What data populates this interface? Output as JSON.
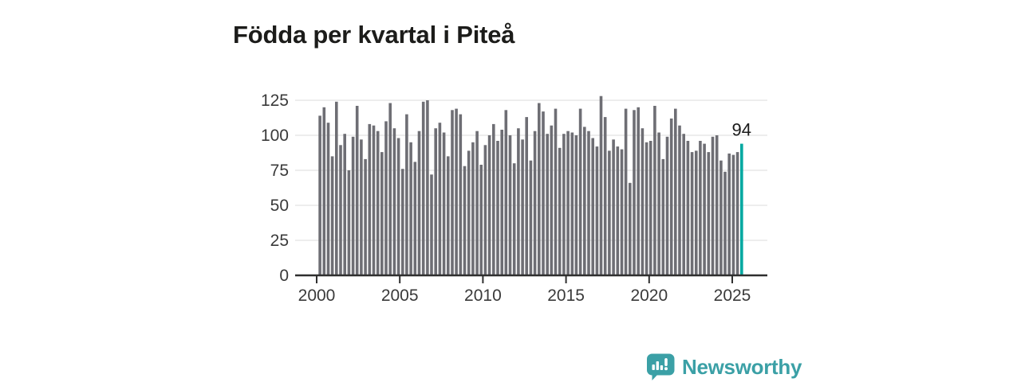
{
  "title": "Födda per kvartal i Piteå",
  "branding": {
    "logo_text": "Newsworthy",
    "logo_color": "#3ba0a6"
  },
  "colors": {
    "bar": "#6e6e74",
    "highlight": "#00a8a1",
    "grid": "#e7e7e7",
    "axis": "#2f2f2f",
    "text": "#3a3a3a",
    "background": "#ffffff"
  },
  "chart_data": {
    "type": "bar",
    "title": "Födda per kvartal i Piteå",
    "xlabel": "",
    "ylabel": "",
    "x_range": {
      "start": "2000 Q1",
      "end": "2025 Q3",
      "frequency": "quarterly"
    },
    "x_tick_labels": [
      "2000",
      "2005",
      "2010",
      "2015",
      "2020",
      "2025"
    ],
    "y_ticks": [
      0,
      25,
      50,
      75,
      100,
      125
    ],
    "ylim": [
      0,
      130
    ],
    "grid": true,
    "legend": false,
    "bar_color": "#6e6e74",
    "values": [
      114,
      120,
      109,
      85,
      124,
      93,
      101,
      75,
      99,
      121,
      97,
      83,
      108,
      107,
      103,
      88,
      110,
      123,
      105,
      98,
      76,
      115,
      95,
      81,
      103,
      124,
      125,
      72,
      105,
      109,
      102,
      85,
      118,
      119,
      115,
      78,
      89,
      95,
      103,
      79,
      93,
      100,
      108,
      96,
      104,
      118,
      100,
      80,
      105,
      97,
      113,
      82,
      103,
      123,
      117,
      101,
      107,
      119,
      91,
      101,
      103,
      102,
      100,
      119,
      106,
      103,
      98,
      92,
      128,
      113,
      89,
      97,
      92,
      90,
      119,
      66,
      118,
      120,
      105,
      95,
      96,
      121,
      102,
      83,
      99,
      112,
      119,
      107,
      101,
      96,
      88,
      89,
      96,
      94,
      88,
      99,
      100,
      82,
      74,
      87,
      86,
      88,
      94
    ],
    "highlight": {
      "index": 102,
      "value": 94,
      "label": "94",
      "color": "#00a8a1"
    }
  }
}
